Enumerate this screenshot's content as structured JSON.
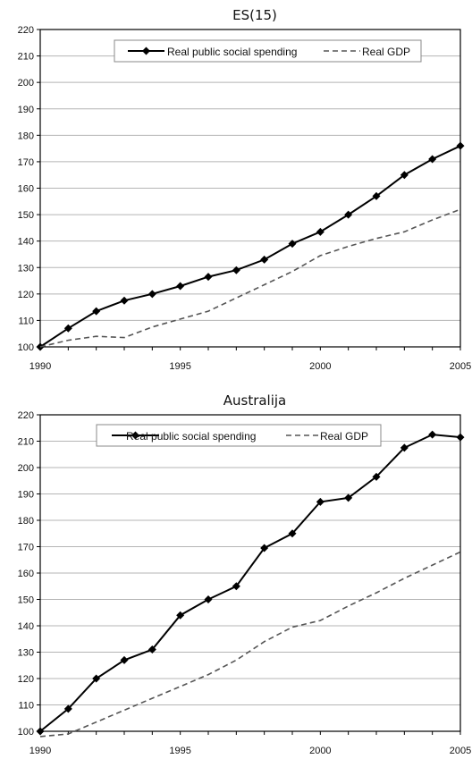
{
  "chart_data": [
    {
      "type": "line",
      "title": "ES(15)",
      "xlabel": "",
      "ylabel": "",
      "xlim": [
        1990,
        2005
      ],
      "ylim": [
        100,
        220
      ],
      "x_ticks": [
        "1990",
        "1995",
        "2000",
        "2005"
      ],
      "y_ticks": [
        "100",
        "110",
        "120",
        "130",
        "140",
        "150",
        "160",
        "170",
        "180",
        "190",
        "200",
        "210",
        "220"
      ],
      "grid": "horizontal",
      "legend": "top-center",
      "x": [
        1990,
        1991,
        1992,
        1993,
        1994,
        1995,
        1996,
        1997,
        1998,
        1999,
        2000,
        2001,
        2002,
        2003,
        2004,
        2005
      ],
      "series": [
        {
          "name": "Real public social spending",
          "style": "solid-diamond",
          "color": "#000000",
          "values": [
            100,
            107,
            113.5,
            117.5,
            120,
            123,
            126.5,
            129,
            133,
            139,
            143.5,
            150,
            157,
            165,
            171,
            176
          ]
        },
        {
          "name": "Real GDP",
          "style": "dashed",
          "color": "#555555",
          "values": [
            100,
            102.5,
            104,
            103.5,
            107.5,
            110.5,
            113.5,
            118.5,
            123.5,
            128.5,
            134.5,
            138,
            141,
            143.5,
            148,
            152
          ]
        }
      ]
    },
    {
      "type": "line",
      "title": "Australija",
      "xlabel": "",
      "ylabel": "",
      "xlim": [
        1990,
        2005
      ],
      "ylim": [
        100,
        220
      ],
      "x_ticks": [
        "1990",
        "1995",
        "2000",
        "2005"
      ],
      "y_ticks": [
        "100",
        "110",
        "120",
        "130",
        "140",
        "150",
        "160",
        "170",
        "180",
        "190",
        "200",
        "210",
        "220"
      ],
      "grid": "horizontal",
      "legend": "top-center",
      "x": [
        1990,
        1991,
        1992,
        1993,
        1994,
        1995,
        1996,
        1997,
        1998,
        1999,
        2000,
        2001,
        2002,
        2003,
        2004,
        2005
      ],
      "series": [
        {
          "name": "Real public social spending",
          "style": "solid-diamond",
          "color": "#000000",
          "values": [
            100,
            108.5,
            120,
            127,
            131,
            144,
            150,
            155,
            169.5,
            175,
            187,
            188.5,
            196.5,
            207.5,
            212.5,
            211.5
          ]
        },
        {
          "name": "Real GDP",
          "style": "dashed",
          "color": "#555555",
          "values": [
            98,
            99,
            103.5,
            108,
            112.5,
            117,
            121.5,
            127,
            134,
            139.5,
            142,
            147.5,
            152.5,
            158,
            163,
            168
          ]
        }
      ]
    }
  ]
}
